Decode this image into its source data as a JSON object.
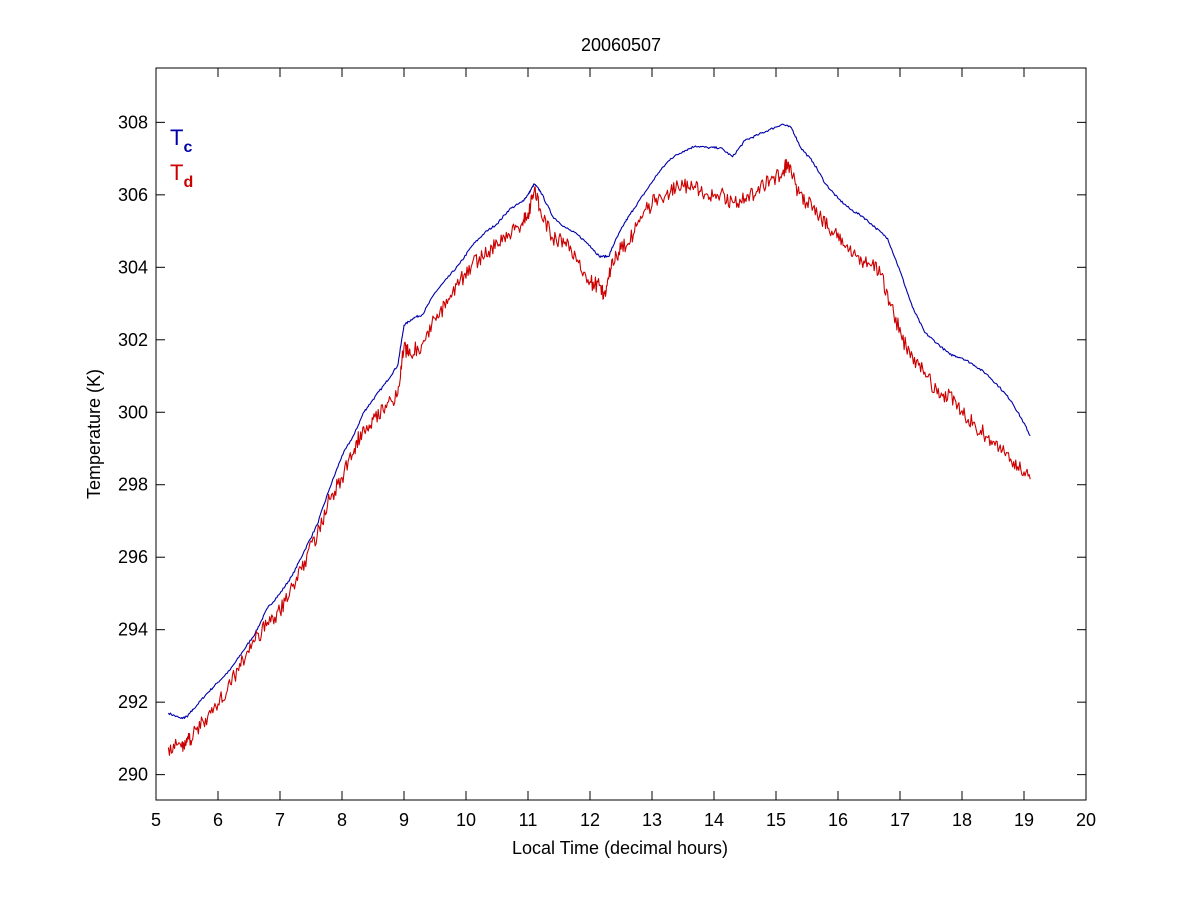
{
  "chart_data": {
    "type": "line",
    "title": "20060507",
    "xlabel": "Local Time (decimal hours)",
    "ylabel": "Temperature (K)",
    "xlim": [
      5,
      20
    ],
    "ylim": [
      289.3,
      309.5
    ],
    "xticks": [
      5,
      6,
      7,
      8,
      9,
      10,
      11,
      12,
      13,
      14,
      15,
      16,
      17,
      18,
      19,
      20
    ],
    "yticks": [
      290,
      292,
      294,
      296,
      298,
      300,
      302,
      304,
      306,
      308
    ],
    "grid": false,
    "legend_position": "top-left",
    "series": [
      {
        "name": "Tc",
        "legend_main": "T",
        "legend_sub": "c",
        "color": "#0000aa",
        "x": [
          5.2,
          5.4,
          5.5,
          5.6,
          5.8,
          6.0,
          6.2,
          6.4,
          6.6,
          6.8,
          7.0,
          7.2,
          7.4,
          7.6,
          7.8,
          8.0,
          8.2,
          8.35,
          8.5,
          8.7,
          8.9,
          9.0,
          9.15,
          9.3,
          9.5,
          9.7,
          9.9,
          10.1,
          10.3,
          10.5,
          10.7,
          10.9,
          11.0,
          11.1,
          11.2,
          11.4,
          11.6,
          11.8,
          12.0,
          12.15,
          12.3,
          12.4,
          12.55,
          12.7,
          12.9,
          13.1,
          13.3,
          13.5,
          13.7,
          13.9,
          14.1,
          14.3,
          14.5,
          14.7,
          14.9,
          15.1,
          15.25,
          15.4,
          15.6,
          15.8,
          16.0,
          16.2,
          16.4,
          16.6,
          16.8,
          17.0,
          17.2,
          17.4,
          17.6,
          17.8,
          18.0,
          18.2,
          18.4,
          18.6,
          18.8,
          19.0,
          19.1
        ],
        "y": [
          291.7,
          291.55,
          291.6,
          291.8,
          292.2,
          292.55,
          292.9,
          293.4,
          293.9,
          294.6,
          295.0,
          295.5,
          296.2,
          296.9,
          297.9,
          298.8,
          299.4,
          300.0,
          300.35,
          300.8,
          301.3,
          302.4,
          302.6,
          302.7,
          303.3,
          303.7,
          304.1,
          304.6,
          304.95,
          305.2,
          305.6,
          305.8,
          306.0,
          306.3,
          306.1,
          305.4,
          305.1,
          304.9,
          304.6,
          304.3,
          304.3,
          304.7,
          305.2,
          305.6,
          306.1,
          306.6,
          307.0,
          307.2,
          307.35,
          307.3,
          307.3,
          307.05,
          307.5,
          307.65,
          307.8,
          307.95,
          307.85,
          307.3,
          306.9,
          306.3,
          305.9,
          305.6,
          305.4,
          305.1,
          304.8,
          303.9,
          302.9,
          302.2,
          301.9,
          301.6,
          301.5,
          301.3,
          301.05,
          300.7,
          300.3,
          299.7,
          299.35
        ]
      },
      {
        "name": "Td",
        "legend_main": "T",
        "legend_sub": "d",
        "color": "#cc0000",
        "x": [
          5.2,
          5.4,
          5.5,
          5.6,
          5.8,
          6.0,
          6.2,
          6.4,
          6.6,
          6.8,
          7.0,
          7.2,
          7.4,
          7.6,
          7.8,
          8.0,
          8.2,
          8.35,
          8.5,
          8.7,
          8.9,
          9.0,
          9.1,
          9.3,
          9.5,
          9.7,
          9.9,
          10.1,
          10.3,
          10.5,
          10.7,
          10.9,
          11.0,
          11.1,
          11.2,
          11.4,
          11.6,
          11.8,
          12.0,
          12.15,
          12.25,
          12.35,
          12.5,
          12.7,
          12.9,
          13.1,
          13.3,
          13.5,
          13.7,
          13.9,
          14.1,
          14.3,
          14.5,
          14.7,
          14.9,
          15.1,
          15.2,
          15.35,
          15.5,
          15.7,
          15.9,
          16.1,
          16.3,
          16.5,
          16.7,
          16.9,
          17.1,
          17.3,
          17.5,
          17.7,
          17.9,
          18.1,
          18.3,
          18.5,
          18.7,
          18.9,
          19.1
        ],
        "y": [
          290.75,
          290.8,
          290.9,
          291.1,
          291.55,
          291.95,
          292.5,
          293.2,
          293.7,
          294.2,
          294.5,
          295.2,
          295.9,
          296.6,
          297.6,
          298.2,
          299.0,
          299.6,
          299.8,
          300.2,
          300.5,
          301.8,
          301.6,
          301.9,
          302.6,
          303.0,
          303.6,
          304.1,
          304.3,
          304.7,
          304.9,
          305.2,
          305.5,
          306.1,
          305.6,
          304.8,
          304.7,
          304.2,
          303.6,
          303.5,
          303.2,
          304.2,
          304.5,
          304.9,
          305.6,
          305.9,
          306.1,
          306.25,
          306.2,
          306.0,
          306.0,
          305.8,
          305.9,
          306.1,
          306.4,
          306.6,
          306.9,
          306.1,
          305.8,
          305.4,
          305.0,
          304.6,
          304.3,
          304.1,
          303.8,
          302.7,
          301.8,
          301.3,
          300.8,
          300.5,
          300.3,
          299.8,
          299.5,
          299.2,
          298.8,
          298.5,
          298.15
        ]
      }
    ]
  }
}
